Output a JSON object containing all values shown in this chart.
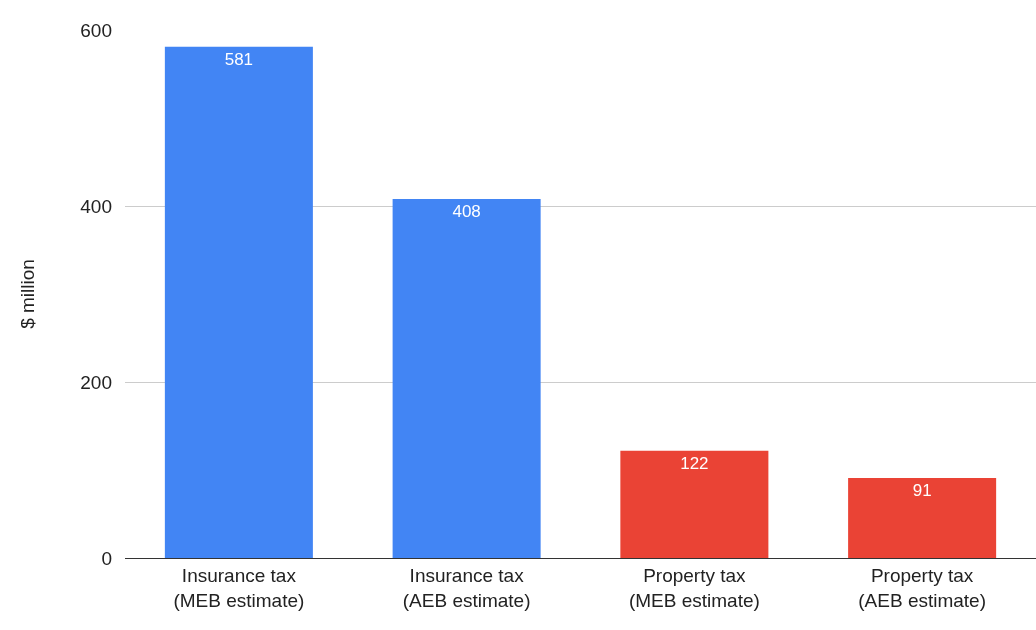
{
  "chart_data": {
    "type": "bar",
    "ylabel": "$ million",
    "categories": [
      "Insurance tax\n(MEB estimate)",
      "Insurance tax\n(AEB estimate)",
      "Property tax\n(MEB estimate)",
      "Property tax\n(AEB estimate)"
    ],
    "values": [
      581,
      408,
      122,
      91
    ],
    "colors": [
      "#4285f4",
      "#4285f4",
      "#ea4335",
      "#ea4335"
    ],
    "ylim": [
      0,
      600
    ],
    "yticks": [
      0,
      200,
      400,
      600
    ],
    "grid": "y",
    "data_labels": true
  }
}
